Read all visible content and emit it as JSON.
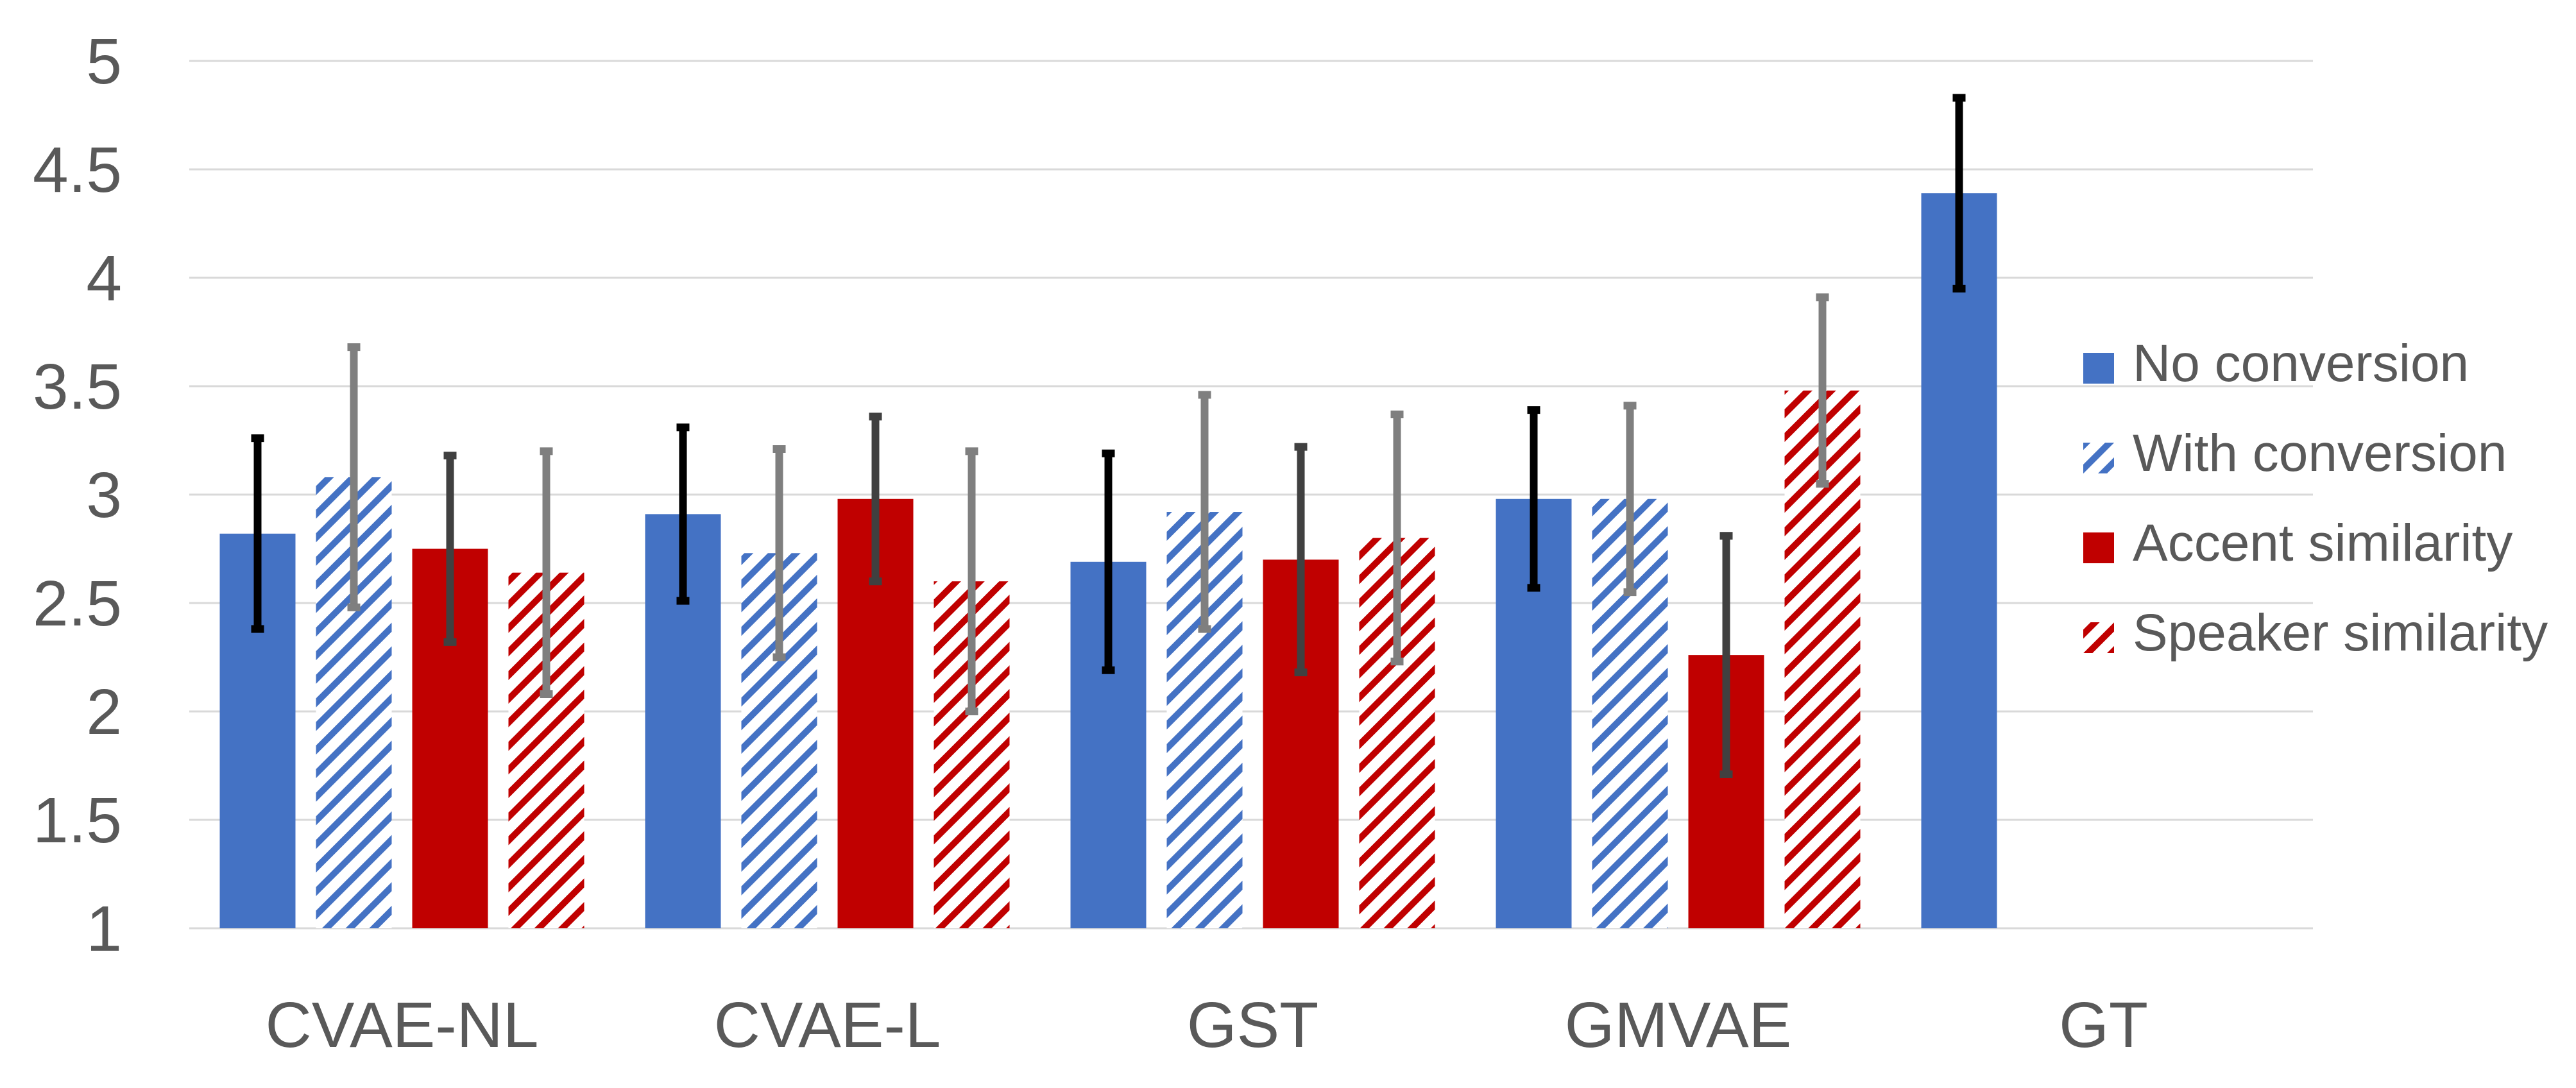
{
  "chart_data": {
    "type": "bar",
    "title": "",
    "xlabel": "",
    "ylabel": "",
    "ylim": [
      1,
      5
    ],
    "yticks": [
      1,
      1.5,
      2,
      2.5,
      3,
      3.5,
      4,
      4.5,
      5
    ],
    "ytick_labels": [
      "1",
      "1.5",
      "2",
      "2.5",
      "3",
      "3.5",
      "4",
      "4.5",
      "5"
    ],
    "grid": true,
    "legend_position": "right",
    "categories": [
      "CVAE-NL",
      "CVAE-L",
      "GST",
      "GMVAE",
      "GT"
    ],
    "series": [
      {
        "name": "No conversion",
        "color": "#4472c4",
        "pattern": "solid",
        "error_color": "#000000",
        "values": [
          2.82,
          2.91,
          2.69,
          2.98,
          4.39
        ],
        "errors": [
          0.44,
          0.4,
          0.5,
          0.41,
          0.44
        ]
      },
      {
        "name": "With conversion",
        "color": "#4472c4",
        "pattern": "hatch",
        "error_color": "#7f7f7f",
        "values": [
          3.08,
          2.73,
          2.92,
          2.98,
          null
        ],
        "errors": [
          0.6,
          0.48,
          0.54,
          0.43,
          null
        ]
      },
      {
        "name": "Accent similarity",
        "color": "#c00000",
        "pattern": "solid",
        "error_color": "#404040",
        "values": [
          2.75,
          2.98,
          2.7,
          2.26,
          null
        ],
        "errors": [
          0.43,
          0.38,
          0.52,
          0.55,
          null
        ]
      },
      {
        "name": "Speaker similarity",
        "color": "#c00000",
        "pattern": "hatch",
        "error_color": "#7f7f7f",
        "values": [
          2.64,
          2.6,
          2.8,
          3.48,
          null
        ],
        "errors": [
          0.56,
          0.6,
          0.57,
          0.43,
          null
        ]
      }
    ]
  }
}
